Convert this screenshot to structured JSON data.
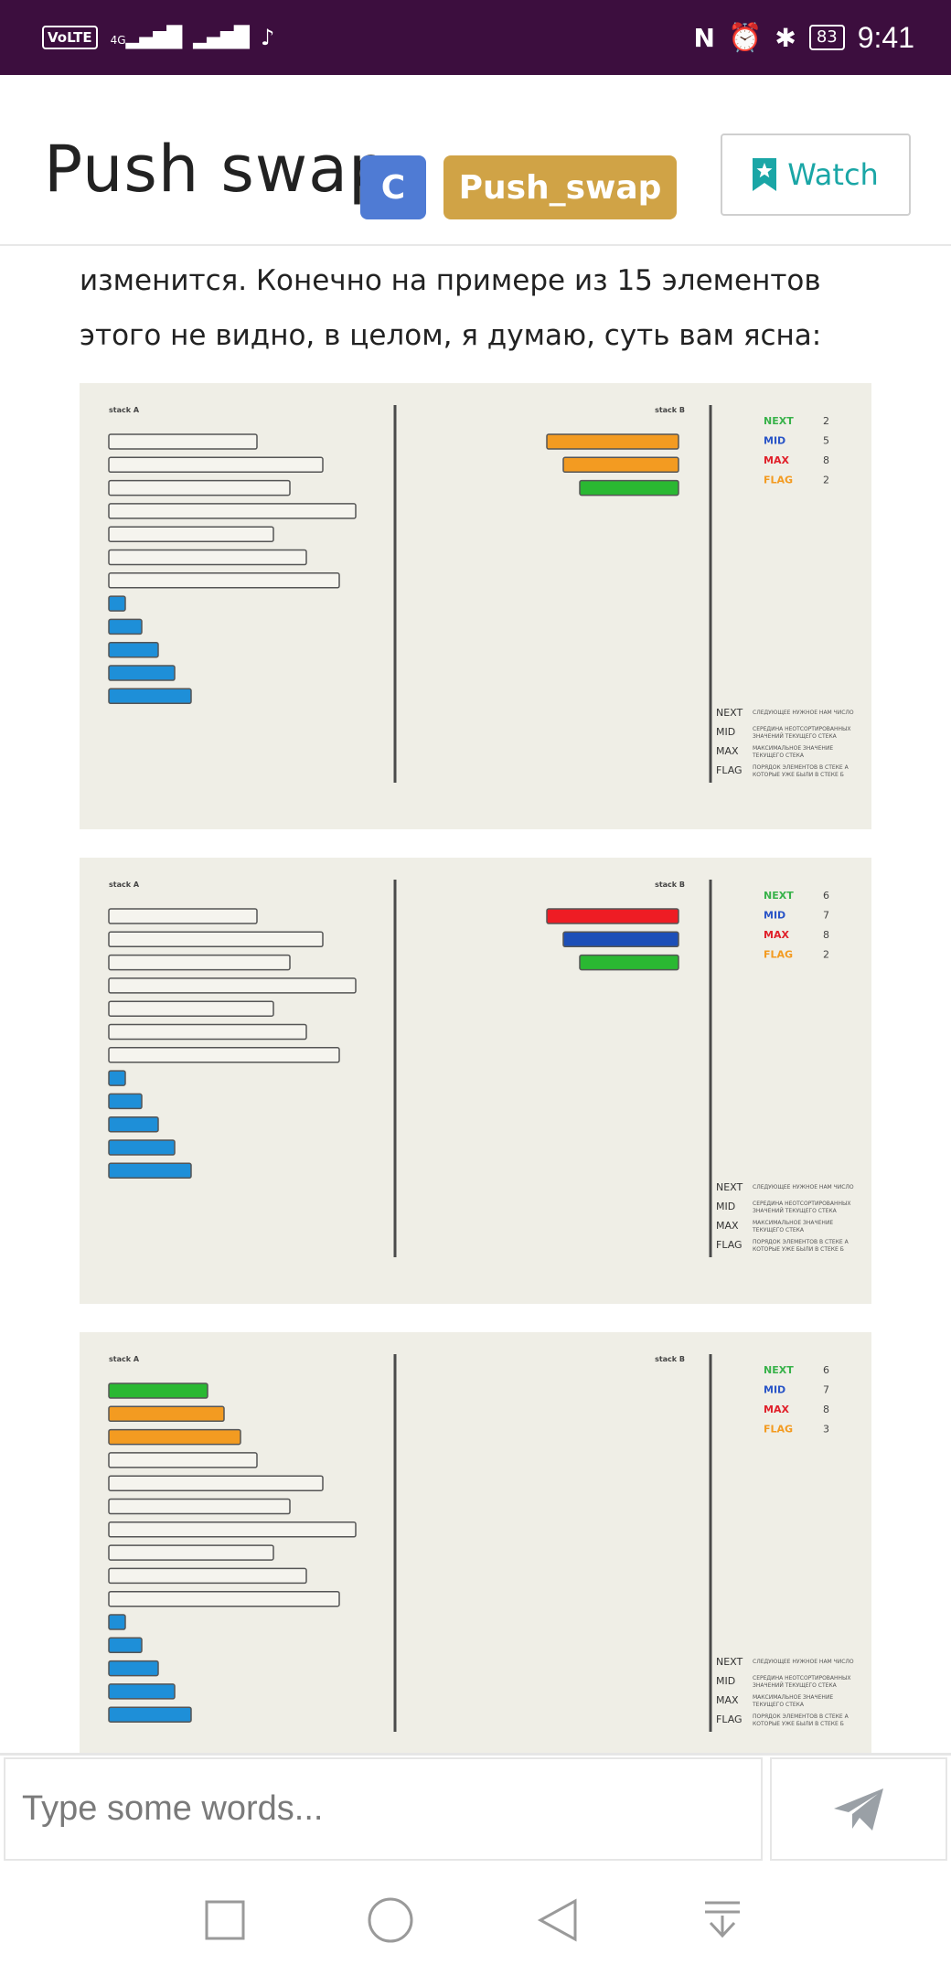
{
  "status_bar": {
    "volte": "VoLTE",
    "network": "4G",
    "battery": "83",
    "time": "9:41"
  },
  "header": {
    "title": "Push swap",
    "tag_language": "C",
    "tag_project": "Push_swap",
    "watch_label": "Watch"
  },
  "paragraph": "изменится. Конечно на примере из 15 элементов этого не видно, в целом, я думаю, суть вам ясна:",
  "figure_labels": {
    "stack_a": "stack A",
    "stack_b": "stack B",
    "next": "NEXT",
    "mid": "MID",
    "max": "MAX",
    "flag": "FLAG",
    "legend_next": "СЛЕДУЮЩЕЕ НУЖНОЕ НАМ ЧИСЛО",
    "legend_mid_1": "СЕРЕДИНА НЕОТСОРТИРОВАННЫХ",
    "legend_mid_2": "ЗНАЧЕНИЙ ТЕКУЩЕГО СТЕКА",
    "legend_max_1": "МАКСИМАЛЬНОЕ ЗНАЧЕНИЕ",
    "legend_max_2": "ТЕКУЩЕГО СТЕКА",
    "legend_flag_1": "ПОРЯДОК ЭЛЕМЕНТОВ В СТЕКЕ А",
    "legend_flag_2": "КОТОРЫЕ УЖЕ БЫЛИ В СТЕКЕ Б"
  },
  "colors": {
    "next": "#38b24a",
    "mid": "#2a55c7",
    "max": "#e0202a",
    "flag": "#f39b21",
    "blue_bar": "#1e8fd8",
    "orange_bar": "#f39b21",
    "green_bar": "#2ab832",
    "red_bar": "#ee1c24",
    "darkblue_bar": "#1d4fb8"
  },
  "figures": [
    {
      "stack_a": [
        {
          "v": 9,
          "c": "none"
        },
        {
          "v": 13,
          "c": "none"
        },
        {
          "v": 11,
          "c": "none"
        },
        {
          "v": 15,
          "c": "none"
        },
        {
          "v": 10,
          "c": "none"
        },
        {
          "v": 12,
          "c": "none"
        },
        {
          "v": 14,
          "c": "none"
        },
        {
          "v": 1,
          "c": "blue"
        },
        {
          "v": 2,
          "c": "blue"
        },
        {
          "v": 3,
          "c": "blue"
        },
        {
          "v": 4,
          "c": "blue"
        },
        {
          "v": 5,
          "c": "blue"
        }
      ],
      "stack_b": [
        {
          "v": 8,
          "c": "orange"
        },
        {
          "v": 7,
          "c": "orange"
        },
        {
          "v": 6,
          "c": "green"
        }
      ],
      "next": "2",
      "mid": "5",
      "max": "8",
      "flag": "2"
    },
    {
      "stack_a": [
        {
          "v": 9,
          "c": "none"
        },
        {
          "v": 13,
          "c": "none"
        },
        {
          "v": 11,
          "c": "none"
        },
        {
          "v": 15,
          "c": "none"
        },
        {
          "v": 10,
          "c": "none"
        },
        {
          "v": 12,
          "c": "none"
        },
        {
          "v": 14,
          "c": "none"
        },
        {
          "v": 1,
          "c": "blue"
        },
        {
          "v": 2,
          "c": "blue"
        },
        {
          "v": 3,
          "c": "blue"
        },
        {
          "v": 4,
          "c": "blue"
        },
        {
          "v": 5,
          "c": "blue"
        }
      ],
      "stack_b": [
        {
          "v": 8,
          "c": "red"
        },
        {
          "v": 7,
          "c": "darkblue"
        },
        {
          "v": 6,
          "c": "green"
        }
      ],
      "next": "6",
      "mid": "7",
      "max": "8",
      "flag": "2"
    },
    {
      "stack_a": [
        {
          "v": 6,
          "c": "green"
        },
        {
          "v": 7,
          "c": "orange"
        },
        {
          "v": 8,
          "c": "orange"
        },
        {
          "v": 9,
          "c": "none"
        },
        {
          "v": 13,
          "c": "none"
        },
        {
          "v": 11,
          "c": "none"
        },
        {
          "v": 15,
          "c": "none"
        },
        {
          "v": 10,
          "c": "none"
        },
        {
          "v": 12,
          "c": "none"
        },
        {
          "v": 14,
          "c": "none"
        },
        {
          "v": 1,
          "c": "blue"
        },
        {
          "v": 2,
          "c": "blue"
        },
        {
          "v": 3,
          "c": "blue"
        },
        {
          "v": 4,
          "c": "blue"
        },
        {
          "v": 5,
          "c": "blue"
        }
      ],
      "stack_b": [],
      "next": "6",
      "mid": "7",
      "max": "8",
      "flag": "3"
    }
  ],
  "composer": {
    "placeholder": "Type some words..."
  },
  "nav": {
    "recent_icon": "square-icon",
    "home_icon": "circle-icon",
    "back_icon": "triangle-back-icon",
    "notif_icon": "pull-down-icon"
  }
}
